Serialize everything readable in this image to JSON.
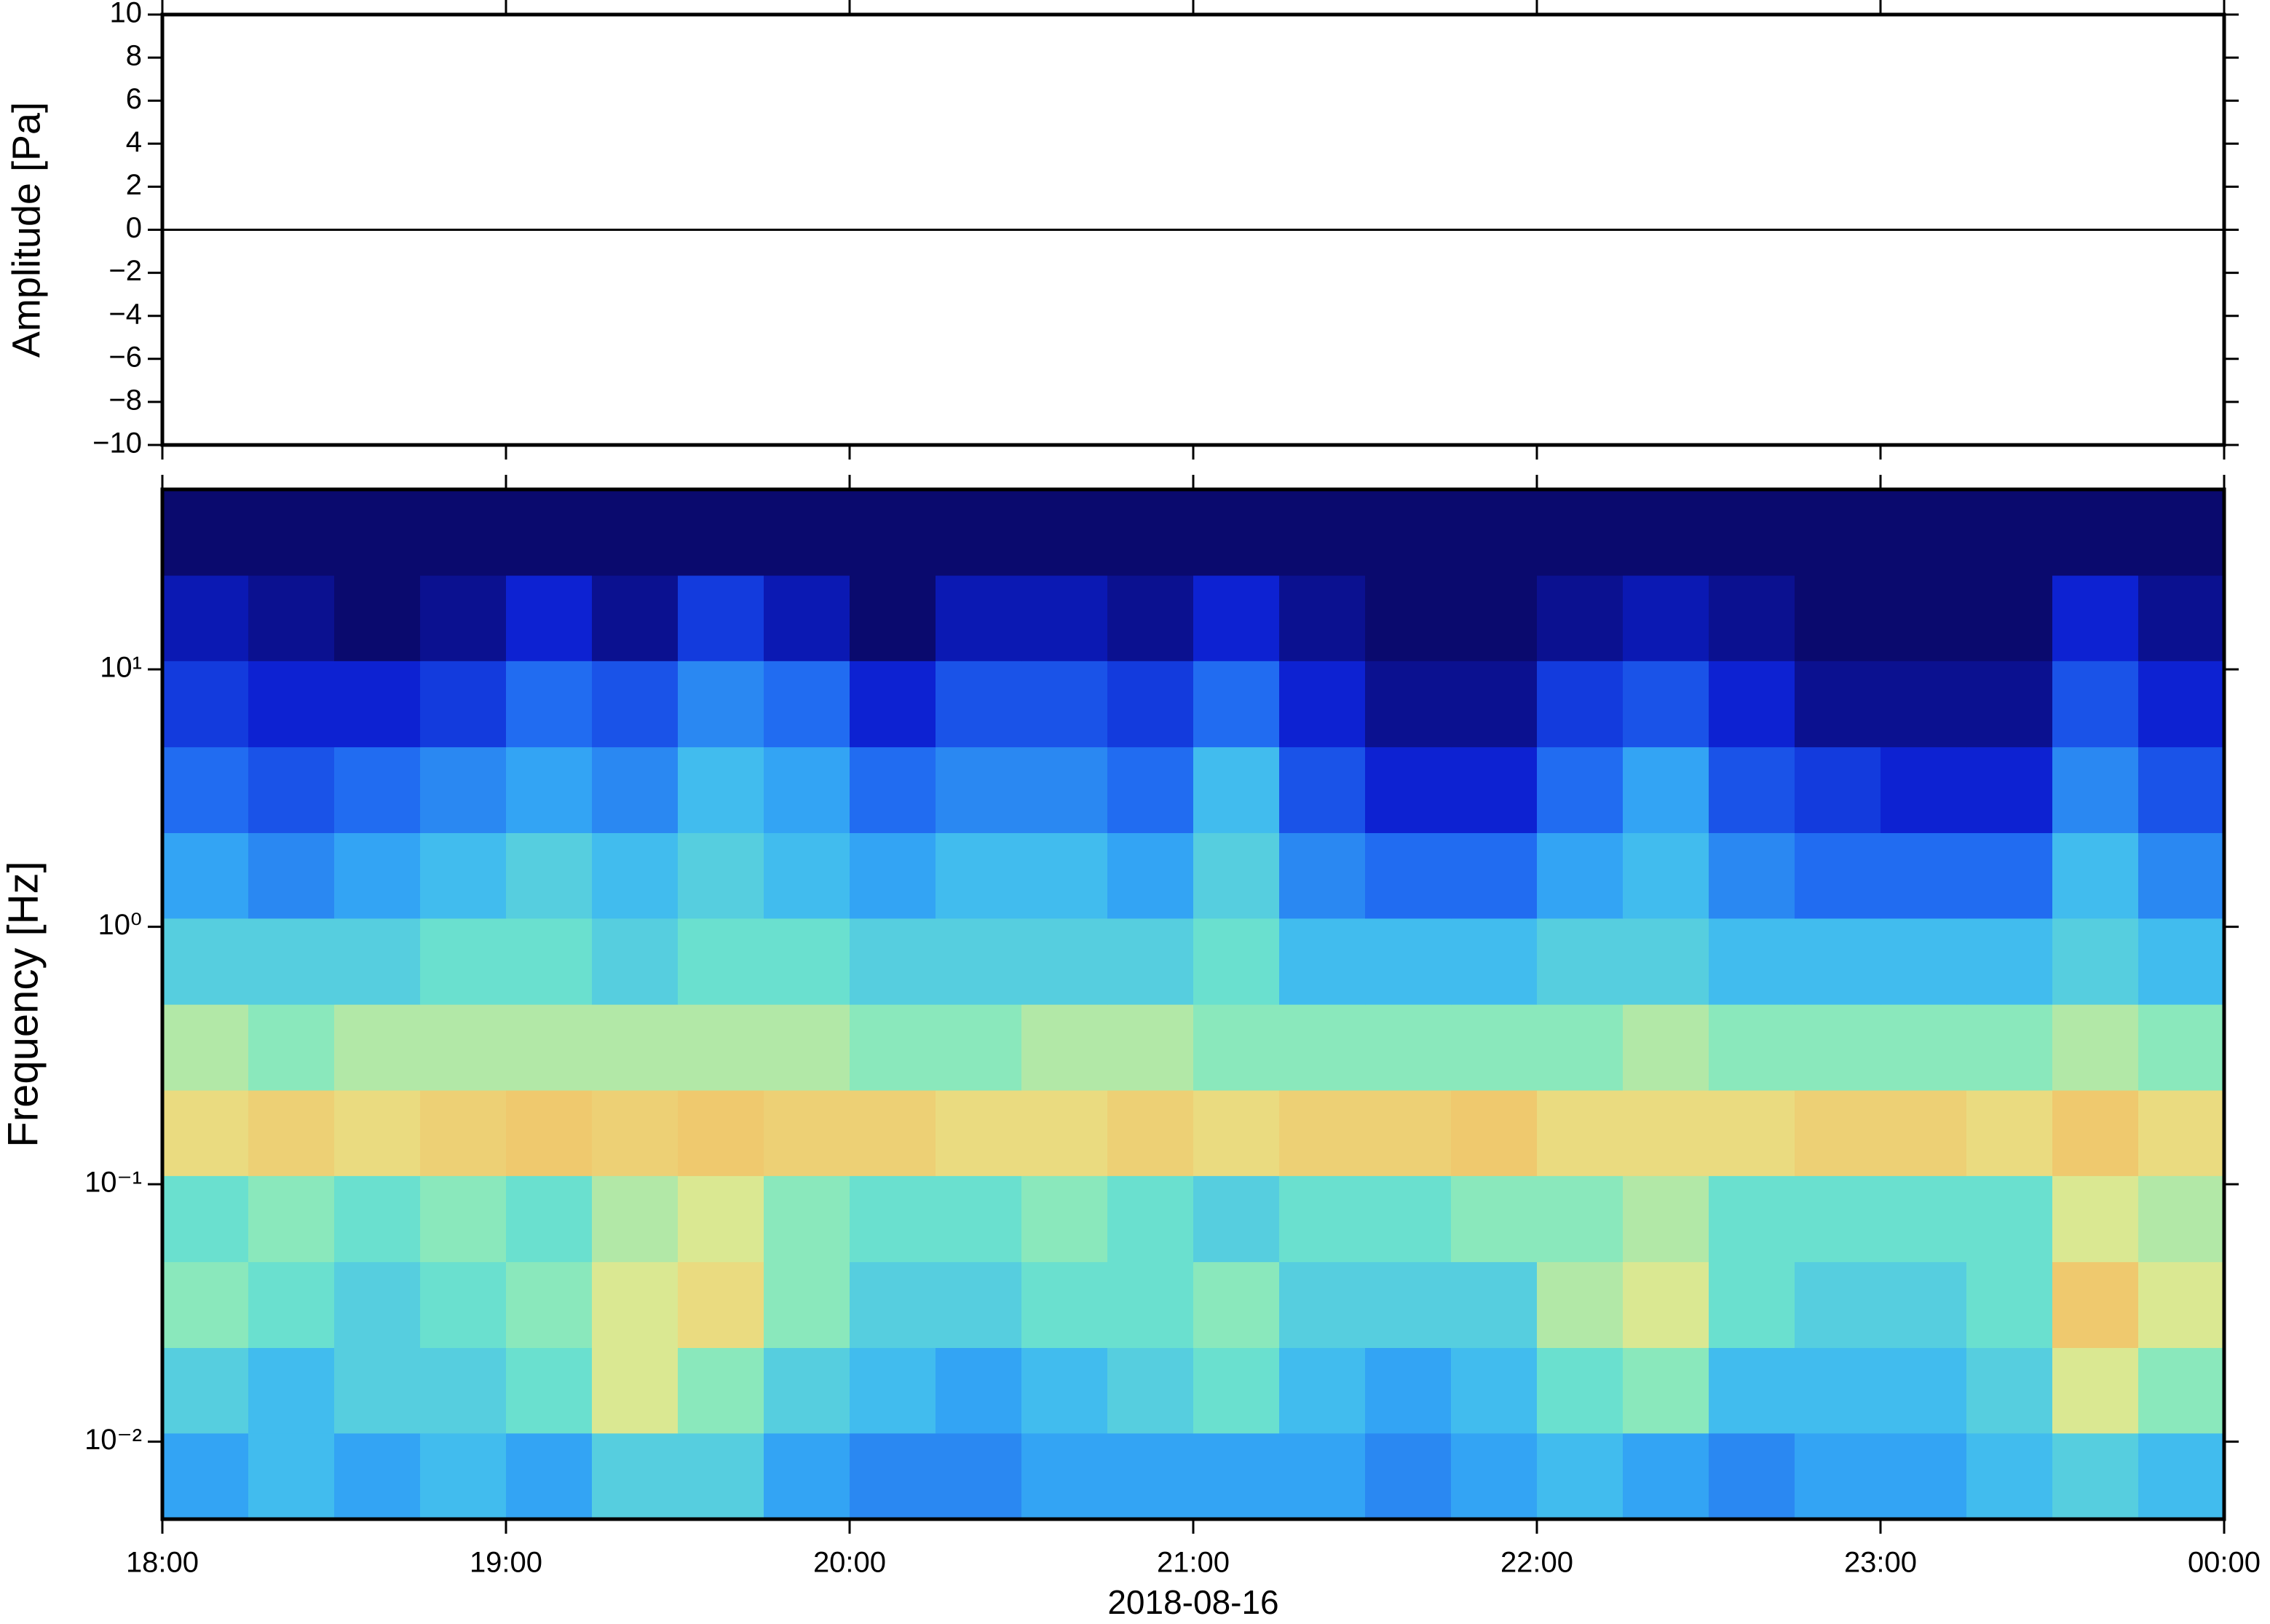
{
  "chart_data": [
    {
      "type": "line",
      "ylabel": "Amplitude [Pa]",
      "color": "#000000",
      "x": [
        18,
        18.25,
        18.5,
        18.75,
        19,
        19.25,
        19.5,
        19.75,
        20,
        20.25,
        20.5,
        20.75,
        21,
        21.25,
        21.5,
        21.75,
        22,
        22.25,
        22.5,
        22.75,
        23,
        23.25,
        23.5,
        23.75,
        24
      ],
      "values": [
        0,
        0,
        0,
        0,
        0,
        0,
        0,
        0,
        0,
        0,
        0,
        0,
        0,
        0,
        0,
        0,
        0,
        0,
        0,
        0,
        0,
        0,
        0,
        0,
        0
      ],
      "xlim": [
        18,
        24
      ],
      "xticks": [
        18,
        19,
        20,
        21,
        22,
        23,
        24
      ],
      "ylim": [
        -10,
        10
      ],
      "yticks": [
        {
          "value": -10,
          "label": "−10"
        },
        {
          "value": -8,
          "label": "−8"
        },
        {
          "value": -6,
          "label": "−6"
        },
        {
          "value": -4,
          "label": "−4"
        },
        {
          "value": -2,
          "label": "−2"
        },
        0,
        2,
        4,
        6,
        8,
        10
      ]
    },
    {
      "type": "heatmap",
      "xlabel": "2018-08-16",
      "ylabel": "Frequency [Hz]",
      "ylog": true,
      "colormap": [
        "#0a0a6e",
        "#0c1fd0",
        "#1e64f0",
        "#38b4f5",
        "#73e8c8",
        "#e6e88c",
        "#f5b45a",
        "#e85a3c"
      ],
      "x_bins": [
        18,
        18.25,
        18.5,
        18.75,
        19,
        19.25,
        19.5,
        19.75,
        20,
        20.25,
        20.5,
        20.75,
        21,
        21.25,
        21.5,
        21.75,
        22,
        22.25,
        22.5,
        22.75,
        23,
        23.25,
        23.5,
        23.75,
        24
      ],
      "y_bins": [
        0.005,
        0.0108,
        0.0232,
        0.05,
        0.108,
        0.232,
        0.5,
        1.08,
        2.32,
        5,
        10.8,
        23.2,
        50
      ],
      "z": [
        [
          0.4,
          0.45,
          0.4,
          0.45,
          0.4,
          0.5,
          0.5,
          0.4,
          0.35,
          0.35,
          0.4,
          0.4,
          0.4,
          0.4,
          0.35,
          0.4,
          0.45,
          0.4,
          0.35,
          0.4,
          0.4,
          0.45,
          0.5,
          0.45
        ],
        [
          0.5,
          0.45,
          0.5,
          0.5,
          0.55,
          0.7,
          0.6,
          0.5,
          0.45,
          0.4,
          0.45,
          0.5,
          0.55,
          0.45,
          0.4,
          0.45,
          0.55,
          0.6,
          0.45,
          0.45,
          0.45,
          0.5,
          0.7,
          0.6
        ],
        [
          0.6,
          0.55,
          0.5,
          0.55,
          0.6,
          0.7,
          0.75,
          0.6,
          0.5,
          0.5,
          0.55,
          0.55,
          0.6,
          0.5,
          0.5,
          0.5,
          0.65,
          0.7,
          0.55,
          0.5,
          0.5,
          0.55,
          0.8,
          0.7
        ],
        [
          0.55,
          0.6,
          0.55,
          0.6,
          0.55,
          0.65,
          0.7,
          0.6,
          0.55,
          0.55,
          0.6,
          0.55,
          0.5,
          0.55,
          0.55,
          0.6,
          0.6,
          0.65,
          0.55,
          0.55,
          0.55,
          0.55,
          0.7,
          0.65
        ],
        [
          0.75,
          0.78,
          0.75,
          0.78,
          0.8,
          0.78,
          0.8,
          0.78,
          0.78,
          0.75,
          0.75,
          0.78,
          0.75,
          0.78,
          0.78,
          0.8,
          0.75,
          0.75,
          0.75,
          0.78,
          0.78,
          0.75,
          0.8,
          0.75
        ],
        [
          0.65,
          0.6,
          0.65,
          0.65,
          0.65,
          0.65,
          0.65,
          0.65,
          0.6,
          0.6,
          0.65,
          0.65,
          0.6,
          0.6,
          0.6,
          0.6,
          0.6,
          0.65,
          0.6,
          0.6,
          0.6,
          0.6,
          0.65,
          0.6
        ],
        [
          0.5,
          0.5,
          0.5,
          0.55,
          0.55,
          0.5,
          0.55,
          0.55,
          0.5,
          0.5,
          0.5,
          0.5,
          0.55,
          0.45,
          0.45,
          0.45,
          0.5,
          0.5,
          0.45,
          0.45,
          0.45,
          0.45,
          0.5,
          0.45
        ],
        [
          0.4,
          0.35,
          0.4,
          0.45,
          0.5,
          0.45,
          0.5,
          0.45,
          0.4,
          0.45,
          0.45,
          0.4,
          0.5,
          0.35,
          0.3,
          0.3,
          0.4,
          0.45,
          0.35,
          0.3,
          0.3,
          0.3,
          0.45,
          0.35
        ],
        [
          0.3,
          0.25,
          0.3,
          0.35,
          0.4,
          0.35,
          0.45,
          0.4,
          0.3,
          0.35,
          0.35,
          0.3,
          0.45,
          0.25,
          0.15,
          0.15,
          0.3,
          0.4,
          0.25,
          0.2,
          0.15,
          0.15,
          0.35,
          0.25
        ],
        [
          0.2,
          0.15,
          0.15,
          0.2,
          0.3,
          0.25,
          0.35,
          0.3,
          0.15,
          0.25,
          0.25,
          0.2,
          0.3,
          0.15,
          0.05,
          0.05,
          0.2,
          0.25,
          0.15,
          0.05,
          0.05,
          0.05,
          0.25,
          0.15
        ],
        [
          0.1,
          0.05,
          0,
          0.05,
          0.15,
          0.05,
          0.2,
          0.1,
          0,
          0.1,
          0.1,
          0.05,
          0.15,
          0.05,
          0,
          0,
          0.05,
          0.1,
          0.05,
          0,
          0,
          0,
          0.15,
          0.05
        ],
        [
          0,
          0,
          0,
          0,
          0,
          0,
          0,
          0,
          0,
          0,
          0,
          0,
          0,
          0,
          0,
          0,
          0,
          0,
          0,
          0,
          0,
          0,
          0,
          0
        ]
      ],
      "xlim": [
        18,
        24
      ],
      "xticks": [
        {
          "value": 18,
          "label": "18:00"
        },
        {
          "value": 19,
          "label": "19:00"
        },
        {
          "value": 20,
          "label": "20:00"
        },
        {
          "value": 21,
          "label": "21:00"
        },
        {
          "value": 22,
          "label": "22:00"
        },
        {
          "value": 23,
          "label": "23:00"
        },
        {
          "value": 24,
          "label": "00:00"
        }
      ],
      "ylim": [
        0.005,
        50
      ],
      "yticks": [
        {
          "value": 0.01,
          "label": "10⁻²"
        },
        {
          "value": 0.1,
          "label": "10⁻¹"
        },
        {
          "value": 1,
          "label": "10⁰"
        },
        {
          "value": 10,
          "label": "10¹"
        }
      ]
    }
  ]
}
